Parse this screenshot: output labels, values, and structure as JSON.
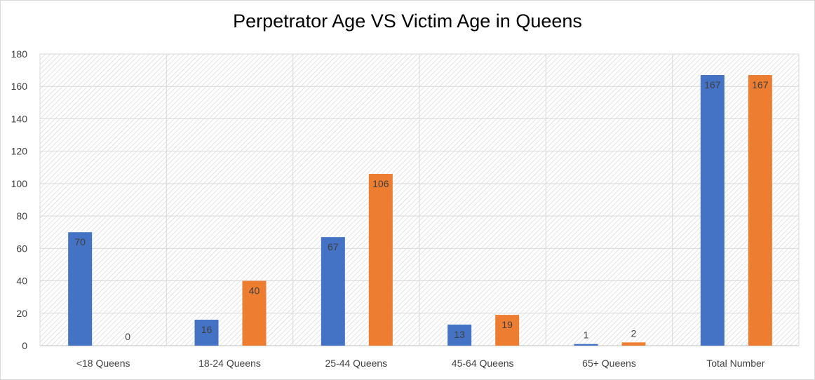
{
  "chart_data": {
    "type": "bar",
    "title": "Perpetrator Age VS Victim Age in Queens",
    "xlabel": "",
    "ylabel": "",
    "categories": [
      "<18 Queens",
      "18-24 Queens",
      "25-44 Queens",
      "45-64 Queens",
      "65+ Queens",
      "Total Number"
    ],
    "series": [
      {
        "values": [
          70,
          16,
          67,
          13,
          1,
          167
        ],
        "color": "#4472c4"
      },
      {
        "values": [
          0,
          40,
          106,
          19,
          2,
          167
        ],
        "color": "#ed7d31"
      }
    ],
    "ylim": [
      0,
      180
    ],
    "yticks": [
      0,
      20,
      40,
      60,
      80,
      100,
      120,
      140,
      160,
      180
    ],
    "grid": true,
    "legend": "none",
    "background_pattern": "diagonal-hatch"
  }
}
